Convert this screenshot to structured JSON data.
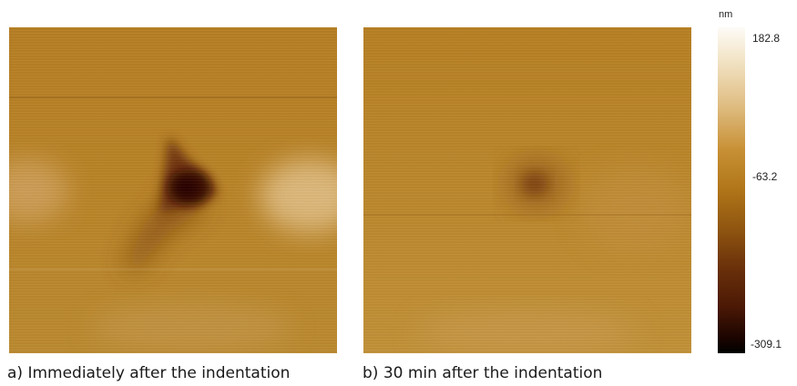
{
  "panels": [
    {
      "caption": "a) Immediately after the indentation"
    },
    {
      "caption": "b) 30 min after the indentation"
    }
  ],
  "colorbar": {
    "unit": "nm",
    "max": "182.8",
    "mid": "-63.2",
    "min": "-309.1"
  },
  "colors": {
    "base": "#b98226",
    "pit": "#2d0800",
    "highlight": "#e8c790"
  }
}
